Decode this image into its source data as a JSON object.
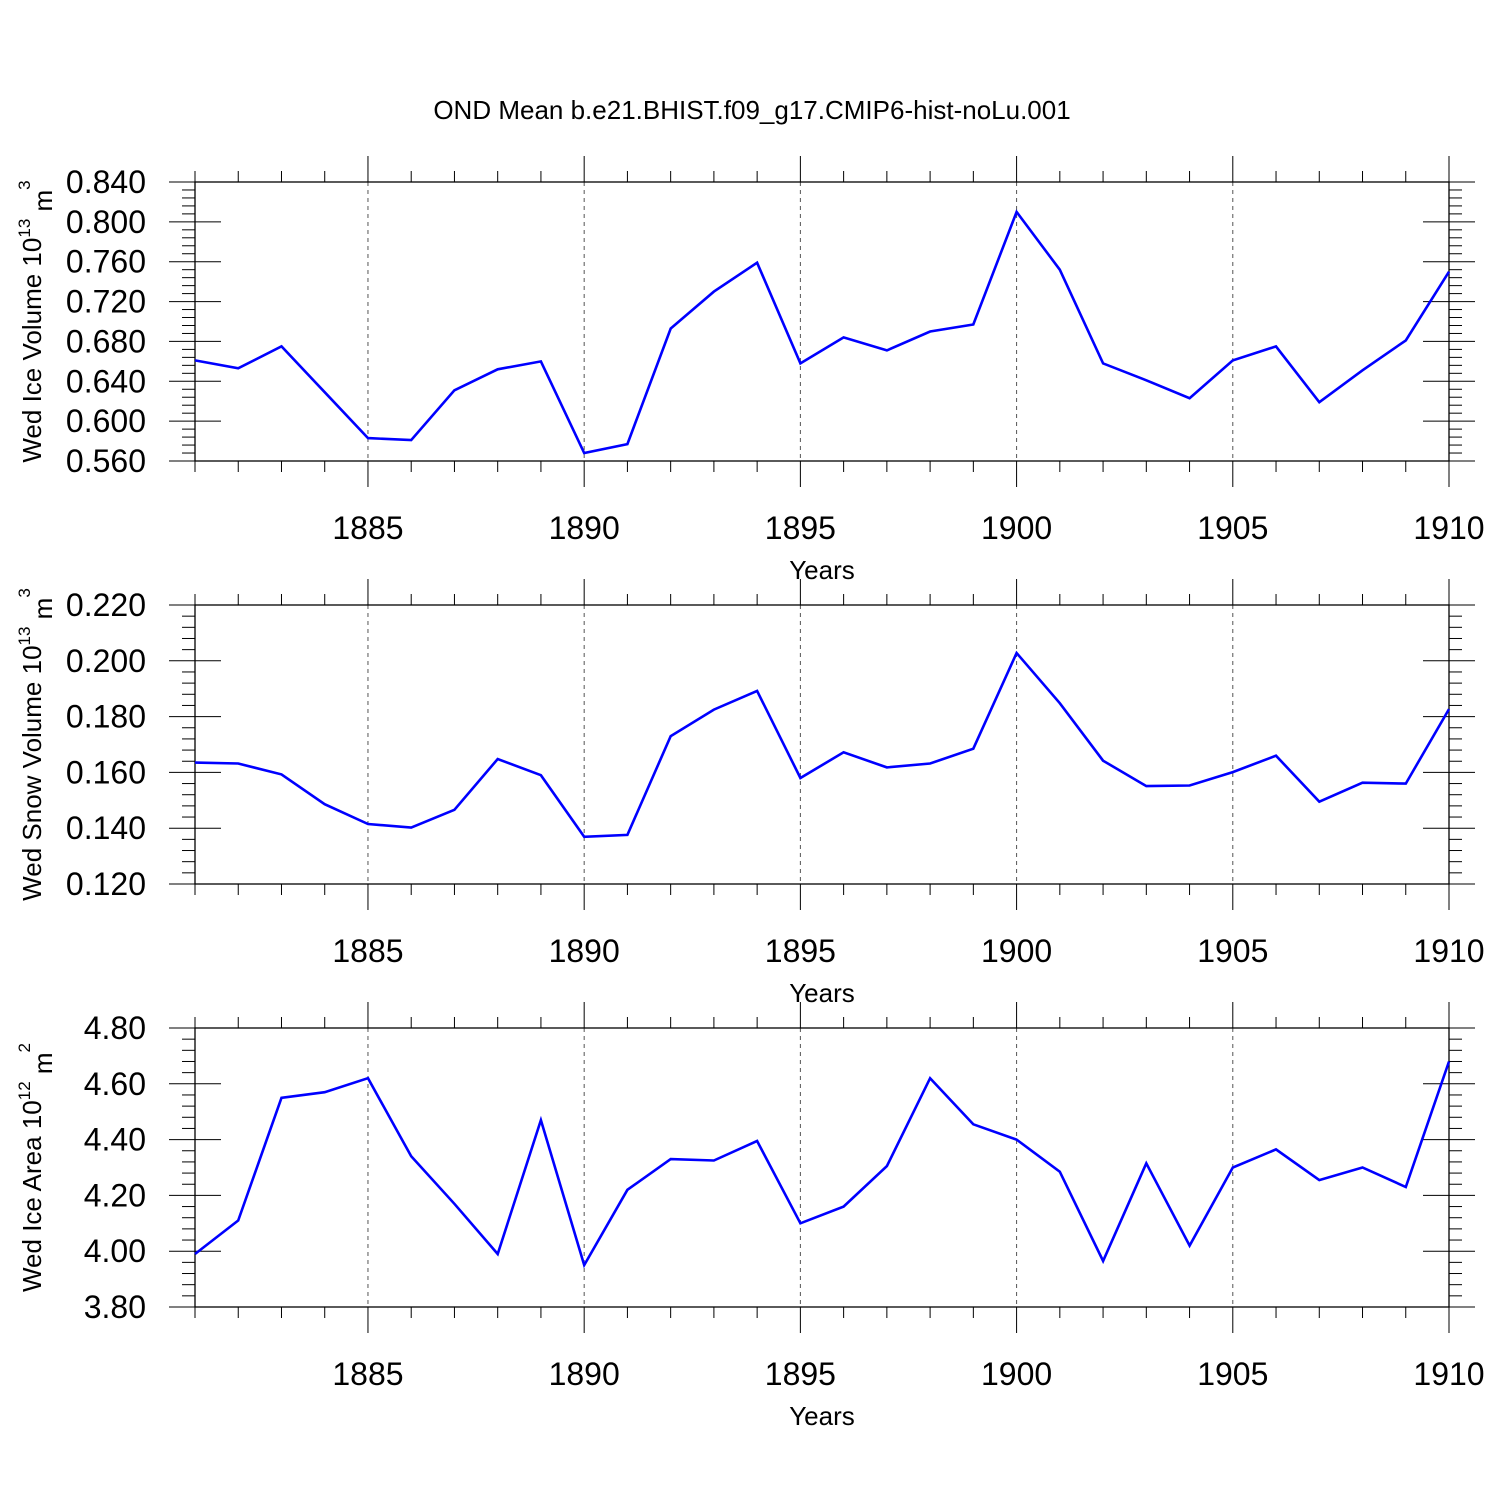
{
  "title": "OND Mean b.e21.BHIST.f09_g17.CMIP6-hist-noLu.001",
  "colors": {
    "line": "#0000ff",
    "axis": "#000000",
    "grid": "#555555",
    "background": "#ffffff"
  },
  "chart_data": [
    {
      "type": "line",
      "ylabel_main": "Wed Ice Volume 10",
      "ylabel_exp": "13",
      "ylabel_unit": "m",
      "ylabel_unit_exp": "3",
      "xlabel": "Years",
      "xlim": [
        1881,
        1910
      ],
      "ylim": [
        0.56,
        0.84
      ],
      "yticks": [
        "0.560",
        "0.600",
        "0.640",
        "0.680",
        "0.720",
        "0.760",
        "0.800",
        "0.840"
      ],
      "xticks": [
        "1885",
        "1890",
        "1895",
        "1900",
        "1905",
        "1910"
      ],
      "x": [
        1881,
        1882,
        1883,
        1884,
        1885,
        1886,
        1887,
        1888,
        1889,
        1890,
        1891,
        1892,
        1893,
        1894,
        1895,
        1896,
        1897,
        1898,
        1899,
        1900,
        1901,
        1902,
        1903,
        1904,
        1905,
        1906,
        1907,
        1908,
        1909,
        1910
      ],
      "values": [
        0.661,
        0.653,
        0.675,
        0.629,
        0.583,
        0.581,
        0.631,
        0.652,
        0.66,
        0.568,
        0.577,
        0.693,
        0.73,
        0.759,
        0.658,
        0.684,
        0.671,
        0.69,
        0.697,
        0.81,
        0.752,
        0.658,
        0.641,
        0.623,
        0.661,
        0.675,
        0.619,
        0.651,
        0.681,
        0.75
      ],
      "grid": "dashed vertical at major x ticks"
    },
    {
      "type": "line",
      "ylabel_main": "Wed Snow Volume 10",
      "ylabel_exp": "13",
      "ylabel_unit": "m",
      "ylabel_unit_exp": "3",
      "xlabel": "Years",
      "xlim": [
        1881,
        1910
      ],
      "ylim": [
        0.12,
        0.22
      ],
      "yticks": [
        "0.120",
        "0.140",
        "0.160",
        "0.180",
        "0.200",
        "0.220"
      ],
      "xticks": [
        "1885",
        "1890",
        "1895",
        "1900",
        "1905",
        "1910"
      ],
      "x": [
        1881,
        1882,
        1883,
        1884,
        1885,
        1886,
        1887,
        1888,
        1889,
        1890,
        1891,
        1892,
        1893,
        1894,
        1895,
        1896,
        1897,
        1898,
        1899,
        1900,
        1901,
        1902,
        1903,
        1904,
        1905,
        1906,
        1907,
        1908,
        1909,
        1910
      ],
      "values": [
        0.1635,
        0.1632,
        0.1593,
        0.1486,
        0.1415,
        0.1402,
        0.1466,
        0.1648,
        0.159,
        0.1369,
        0.1376,
        0.173,
        0.1825,
        0.1892,
        0.158,
        0.1672,
        0.1618,
        0.1632,
        0.1685,
        0.2028,
        0.1848,
        0.1642,
        0.1551,
        0.1553,
        0.1601,
        0.166,
        0.1495,
        0.1563,
        0.156,
        0.1827
      ],
      "grid": "dashed vertical at major x ticks"
    },
    {
      "type": "line",
      "ylabel_main": "Wed Ice Area 10",
      "ylabel_exp": "12",
      "ylabel_unit": "m",
      "ylabel_unit_exp": "2",
      "xlabel": "Years",
      "xlim": [
        1881,
        1910
      ],
      "ylim": [
        3.8,
        4.8
      ],
      "yticks": [
        "3.80",
        "4.00",
        "4.20",
        "4.40",
        "4.60",
        "4.80"
      ],
      "xticks": [
        "1885",
        "1890",
        "1895",
        "1900",
        "1905",
        "1910"
      ],
      "x": [
        1881,
        1882,
        1883,
        1884,
        1885,
        1886,
        1887,
        1888,
        1889,
        1890,
        1891,
        1892,
        1893,
        1894,
        1895,
        1896,
        1897,
        1898,
        1899,
        1900,
        1901,
        1902,
        1903,
        1904,
        1905,
        1906,
        1907,
        1908,
        1909,
        1910
      ],
      "values": [
        3.99,
        4.11,
        4.55,
        4.57,
        4.62,
        4.34,
        4.17,
        3.99,
        4.47,
        3.95,
        4.22,
        4.33,
        4.325,
        4.395,
        4.1,
        4.16,
        4.305,
        4.62,
        4.455,
        4.4,
        4.285,
        3.965,
        4.315,
        4.02,
        4.3,
        4.365,
        4.255,
        4.3,
        4.23,
        4.68
      ],
      "grid": "dashed vertical at major x ticks"
    }
  ]
}
